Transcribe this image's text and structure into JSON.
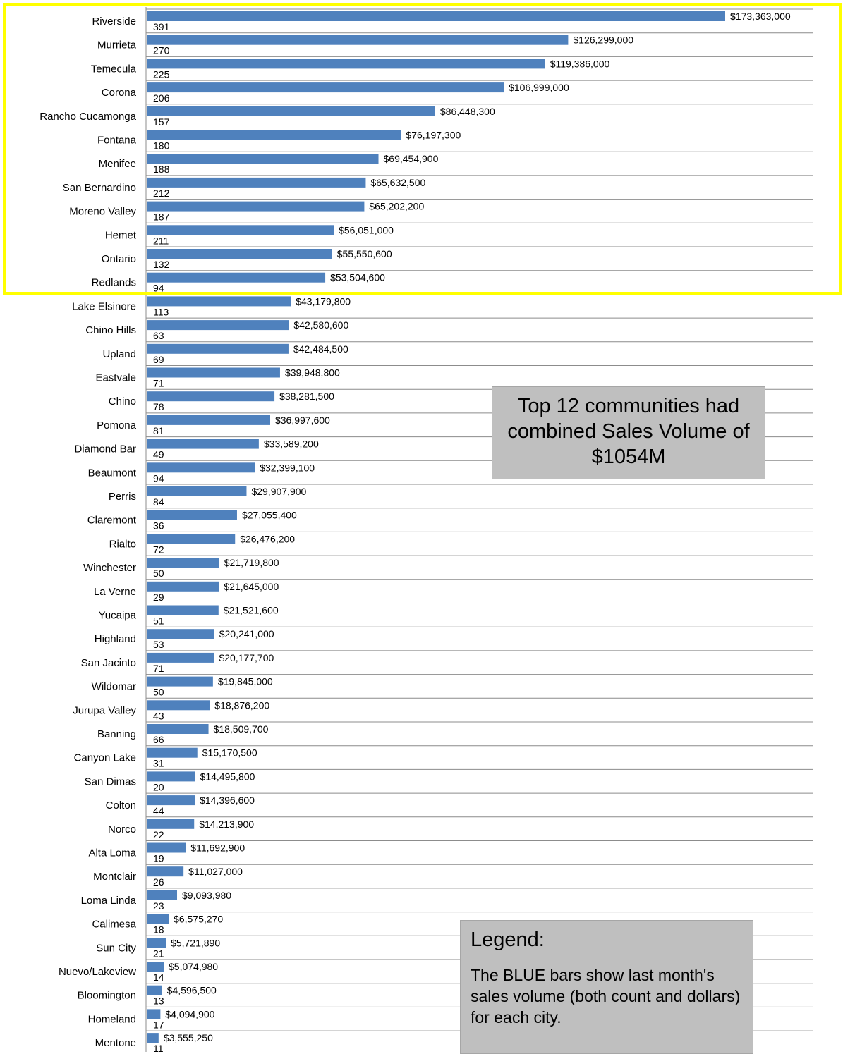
{
  "colors": {
    "bar": "#4f81bd",
    "highlight": "#ffff00",
    "box_bg": "#bfbfbf",
    "gridline": "#8c8c8c"
  },
  "annotations": {
    "summary": "Top 12 communities had combined Sales Volume of $1054M",
    "legend_title": "Legend:",
    "legend_body": "The BLUE bars show last month's sales volume (both count and dollars) for each city."
  },
  "highlight_group": "Top 12 communities",
  "chart_data": {
    "type": "bar",
    "orientation": "horizontal",
    "categories": [
      "Riverside",
      "Murrieta",
      "Temecula",
      "Corona",
      "Rancho Cucamonga",
      "Fontana",
      "Menifee",
      "San Bernardino",
      "Moreno Valley",
      "Hemet",
      "Ontario",
      "Redlands",
      "Lake Elsinore",
      "Chino Hills",
      "Upland",
      "Eastvale",
      "Chino",
      "Pomona",
      "Diamond Bar",
      "Beaumont",
      "Perris",
      "Claremont",
      "Rialto",
      "Winchester",
      "La Verne",
      "Yucaipa",
      "Highland",
      "San Jacinto",
      "Wildomar",
      "Jurupa Valley",
      "Banning",
      "Canyon Lake",
      "San Dimas",
      "Colton",
      "Norco",
      "Alta Loma",
      "Montclair",
      "Loma Linda",
      "Calimesa",
      "Sun City",
      "Nuevo/Lakeview",
      "Bloomington",
      "Homeland",
      "Mentone"
    ],
    "series": [
      {
        "values": [
          173363000,
          126299000,
          119386000,
          106999000,
          86448300,
          76197300,
          69454900,
          65632500,
          65202200,
          56051000,
          55550600,
          53504600,
          43179800,
          42580600,
          42484500,
          39948800,
          38281500,
          36997600,
          33589200,
          32399100,
          29907900,
          27055400,
          26476200,
          21719800,
          21645000,
          21521600,
          20241000,
          20177700,
          19845000,
          18876200,
          18509700,
          15170500,
          14495800,
          14396600,
          14213900,
          11692900,
          11027000,
          9093980,
          6575270,
          5721890,
          5074980,
          4596500,
          4094900,
          3555250
        ]
      }
    ],
    "value_labels": [
      "$173,363,000",
      "$126,299,000",
      "$119,386,000",
      "$106,999,000",
      "$86,448,300",
      "$76,197,300",
      "$69,454,900",
      "$65,632,500",
      "$65,202,200",
      "$56,051,000",
      "$55,550,600",
      "$53,504,600",
      "$43,179,800",
      "$42,580,600",
      "$42,484,500",
      "$39,948,800",
      "$38,281,500",
      "$36,997,600",
      "$33,589,200",
      "$32,399,100",
      "$29,907,900",
      "$27,055,400",
      "$26,476,200",
      "$21,719,800",
      "$21,645,000",
      "$21,521,600",
      "$20,241,000",
      "$20,177,700",
      "$19,845,000",
      "$18,876,200",
      "$18,509,700",
      "$15,170,500",
      "$14,495,800",
      "$14,396,600",
      "$14,213,900",
      "$11,692,900",
      "$11,027,000",
      "$9,093,980",
      "$6,575,270",
      "$5,721,890",
      "$5,074,980",
      "$4,596,500",
      "$4,094,900",
      "$3,555,250"
    ],
    "counts": [
      "391",
      "270",
      "225",
      "206",
      "157",
      "180",
      "188",
      "212",
      "187",
      "211",
      "132",
      "94",
      "113",
      "63",
      "69",
      "71",
      "78",
      "81",
      "49",
      "94",
      "84",
      "36",
      "72",
      "50",
      "29",
      "51",
      "53",
      "71",
      "50",
      "43",
      "66",
      "31",
      "20",
      "44",
      "22",
      "19",
      "26",
      "23",
      "18",
      "21",
      "14",
      "13",
      "17",
      "11"
    ],
    "highlighted_top": 12,
    "xlim": [
      0,
      173363000
    ],
    "grid": true,
    "legend": "none"
  }
}
